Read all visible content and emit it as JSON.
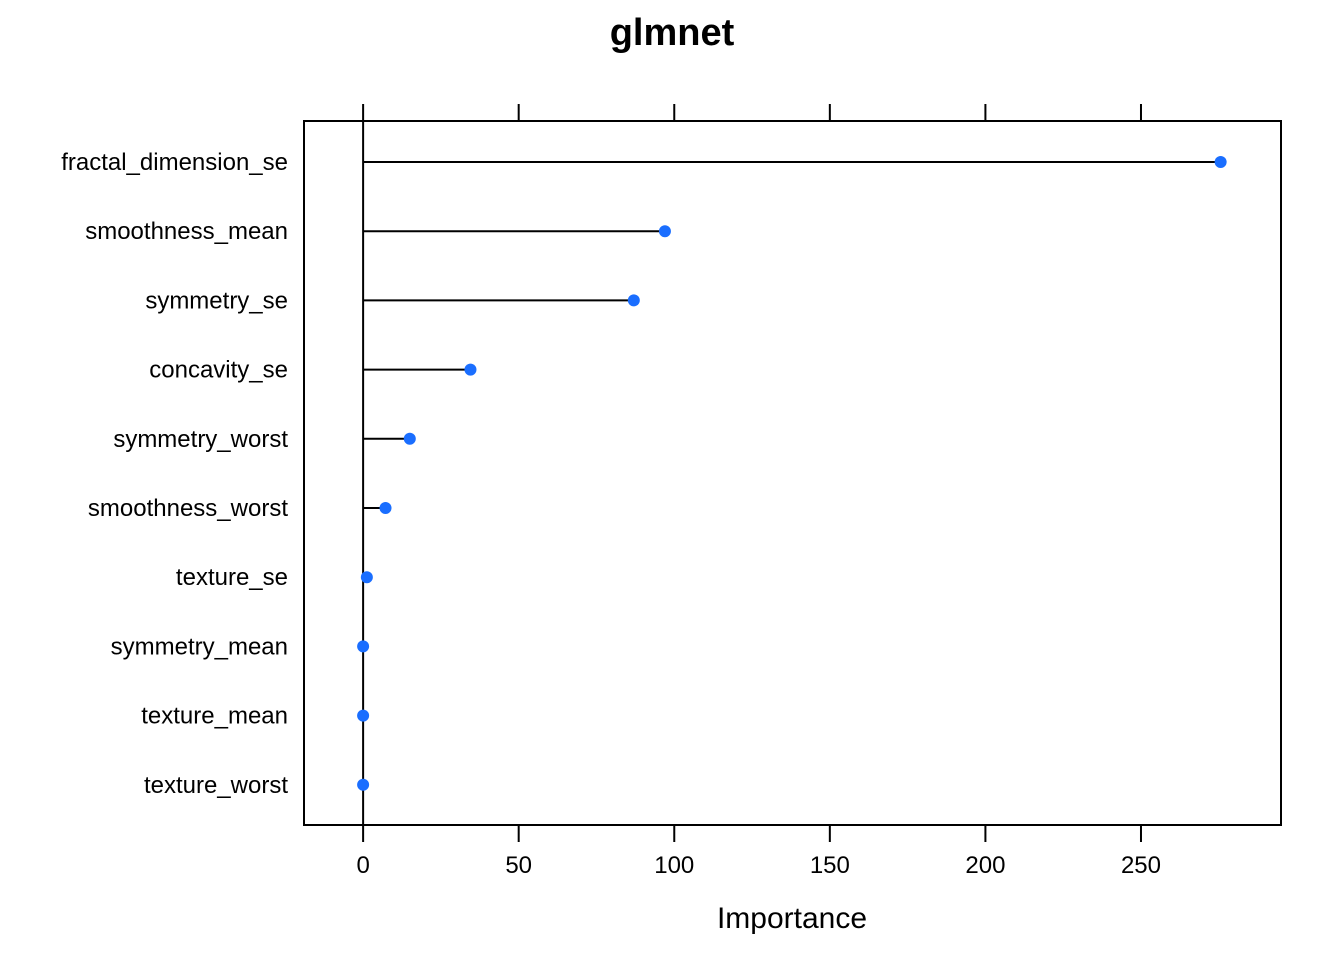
{
  "chart_data": {
    "type": "dot",
    "title": "glmnet",
    "xlabel": "Importance",
    "ylabel": "",
    "xlim": [
      -19,
      295
    ],
    "xticks": [
      0,
      50,
      100,
      150,
      200,
      250
    ],
    "categories": [
      "fractal_dimension_se",
      "smoothness_mean",
      "symmetry_se",
      "concavity_se",
      "symmetry_worst",
      "smoothness_worst",
      "texture_se",
      "symmetry_mean",
      "texture_mean",
      "texture_worst"
    ],
    "values": [
      275.6,
      97,
      87,
      34.5,
      15,
      7.2,
      1.2,
      0,
      0,
      0
    ],
    "point_color": "#1a6eff",
    "line_color": "#000000",
    "grid": false,
    "legend": "none"
  }
}
